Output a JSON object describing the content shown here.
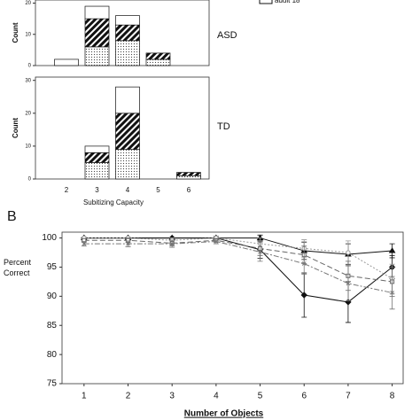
{
  "chart_data": [
    {
      "type": "stacked_bar",
      "legend_text": "adult 18",
      "panel_label": "ASD",
      "y_label": "Count",
      "categories": [
        "2",
        "3",
        "4",
        "5",
        "6"
      ],
      "ylim": [
        0,
        21
      ],
      "yticks": [
        0,
        10,
        20
      ],
      "series": [
        {
          "pattern": "dots",
          "color": "#555",
          "values": [
            0,
            6,
            8,
            2,
            0
          ]
        },
        {
          "pattern": "hatch",
          "color": "#111",
          "values": [
            0,
            9,
            5,
            2,
            0
          ]
        },
        {
          "pattern": "none",
          "color": "#fff",
          "values": [
            2,
            4,
            3,
            0,
            0
          ]
        }
      ]
    },
    {
      "type": "stacked_bar",
      "panel_label": "TD",
      "y_label": "Count",
      "x_label": "Subitizing Capacity",
      "categories": [
        "2",
        "3",
        "4",
        "5",
        "6"
      ],
      "ylim": [
        0,
        31
      ],
      "yticks": [
        0,
        10,
        20,
        30
      ],
      "series": [
        {
          "pattern": "dots",
          "color": "#555",
          "values": [
            0,
            5,
            9,
            0,
            1
          ]
        },
        {
          "pattern": "hatch",
          "color": "#111",
          "values": [
            0,
            3,
            11,
            0,
            1
          ]
        },
        {
          "pattern": "none",
          "color": "#fff",
          "values": [
            0,
            2,
            8,
            0,
            0
          ]
        }
      ]
    },
    {
      "type": "line",
      "panel_label": "B",
      "y_label": "Percent Correct",
      "x_label": "Number of Objects",
      "x": [
        1,
        2,
        3,
        4,
        5,
        6,
        7,
        8
      ],
      "xticks": [
        1,
        2,
        3,
        4,
        5,
        6,
        7,
        8
      ],
      "xlim": [
        0.5,
        8.25
      ],
      "ylim": [
        75,
        101
      ],
      "yticks": [
        75,
        80,
        85,
        90,
        95,
        100
      ],
      "series": [
        {
          "marker": "diamond",
          "dash": "none",
          "color": "#111",
          "values": [
            100,
            100,
            100,
            100,
            98,
            90.2,
            89,
            95
          ],
          "errors": [
            0,
            0,
            0,
            0.3,
            1.5,
            3.8,
            3.5,
            2
          ]
        },
        {
          "marker": "triangle",
          "dash": "none",
          "color": "#111",
          "values": [
            100,
            100,
            100,
            100,
            100,
            97.8,
            97.2,
            97.8
          ],
          "errors": [
            0,
            0,
            0,
            0,
            0.5,
            1.5,
            1.8,
            1.2
          ]
        },
        {
          "marker": "circle",
          "dash": "2,2",
          "color": "#999",
          "values": [
            100,
            100,
            99.6,
            100,
            99,
            98.2,
            97.5,
            93
          ],
          "errors": [
            0,
            0,
            0.4,
            0.3,
            1,
            1.5,
            2,
            2.5
          ]
        },
        {
          "marker": "square",
          "dash": "6,3",
          "color": "#666",
          "values": [
            99.6,
            99.6,
            99.1,
            99.6,
            98.2,
            97.1,
            93.5,
            92.5
          ],
          "errors": [
            0.3,
            0.4,
            0.5,
            0.3,
            1.2,
            1.5,
            2.5,
            2.5
          ]
        },
        {
          "marker": "cross",
          "dash": "6,2,2,2",
          "color": "#777",
          "values": [
            99,
            99,
            99,
            99.4,
            97.6,
            95.6,
            92.2,
            90.6
          ],
          "errors": [
            0.4,
            0.5,
            0.6,
            0.4,
            1.6,
            1.8,
            3,
            2.8
          ]
        }
      ]
    }
  ]
}
